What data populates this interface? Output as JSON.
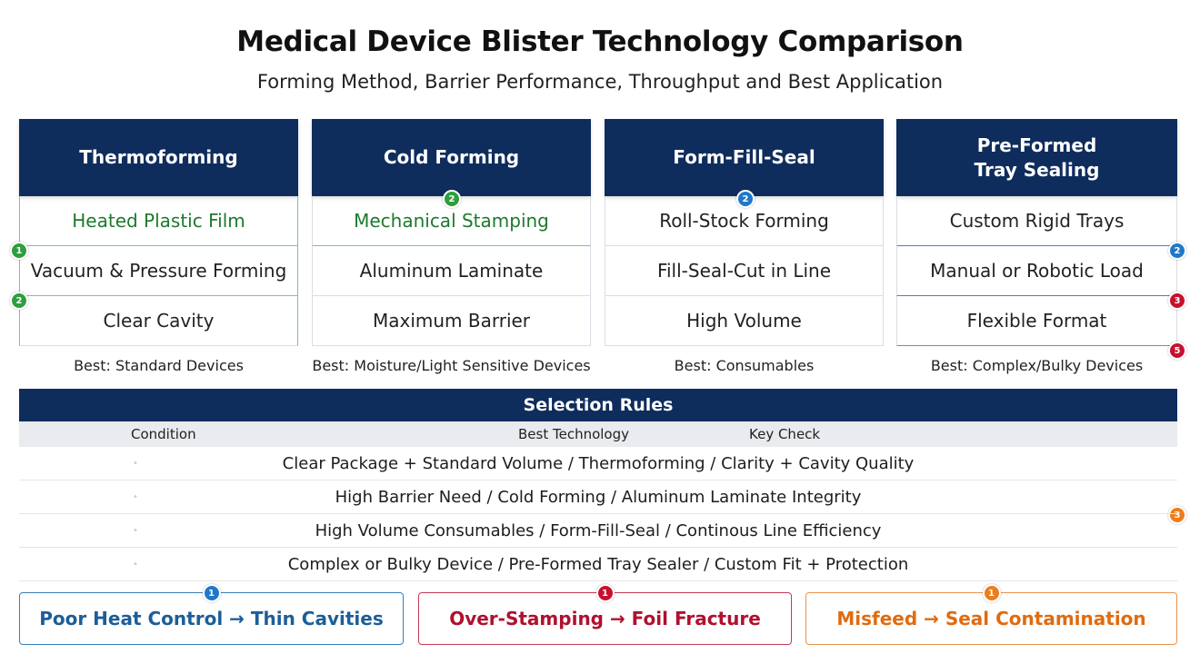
{
  "title": "Medical Device Blister Technology Comparison",
  "subtitle": "Forming Method, Barrier Performance, Throughput and Best Application",
  "columns": [
    {
      "name": "Thermoforming",
      "rows": [
        "Heated Plastic Film",
        "Vacuum & Pressure Forming",
        "Clear Cavity"
      ],
      "best": "Best: Standard Devices"
    },
    {
      "name": "Cold Forming",
      "rows": [
        "Mechanical Stamping",
        "Aluminum Laminate",
        "Maximum Barrier"
      ],
      "best": "Best: Moisture/Light Sensitive Devices"
    },
    {
      "name": "Form-Fill-Seal",
      "rows": [
        "Roll-Stock Forming",
        "Fill-Seal-Cut in Line",
        "High Volume"
      ],
      "best": "Best: Consumables"
    },
    {
      "name_line1": "Pre-Formed",
      "name_line2": "Tray Sealing",
      "rows": [
        "Custom Rigid Trays",
        "Manual or Robotic Load",
        "Flexible Format"
      ],
      "best": "Best: Complex/Bulky Devices"
    }
  ],
  "markers": {
    "thermo_a": "1",
    "thermo_b": "2",
    "cold": "2",
    "ffs": "2",
    "pre_a": "2",
    "pre_b": "3",
    "pre_c": "5",
    "rules_side": "3"
  },
  "selection_rules": {
    "title": "Selection Rules",
    "headers": {
      "condition": "Condition",
      "technology": "Best Technology",
      "check": "Key Check"
    },
    "rows": [
      "Clear Package + Standard Volume / Thermoforming / Clarity + Cavity Quality",
      "High Barrier Need / Cold Forming / Aluminum Laminate Integrity",
      "High Volume Consumables / Form-Fill-Seal / Continous Line Efficiency",
      "Complex or Bulky Device / Pre-Formed Tray Sealer / Custom Fit + Protection"
    ]
  },
  "pitfalls": [
    {
      "text": "Poor Heat Control → Thin Cavities",
      "marker": "1",
      "color": "#1c5e98"
    },
    {
      "text": "Over-Stamping → Foil Fracture",
      "marker": "1",
      "color": "#b0102e"
    },
    {
      "text": "Misfeed → Seal Contamination",
      "marker": "1",
      "color": "#e06b10"
    }
  ],
  "colors": {
    "header_navy": "#0f2d5c",
    "accent_green": "#1d7a2e"
  }
}
